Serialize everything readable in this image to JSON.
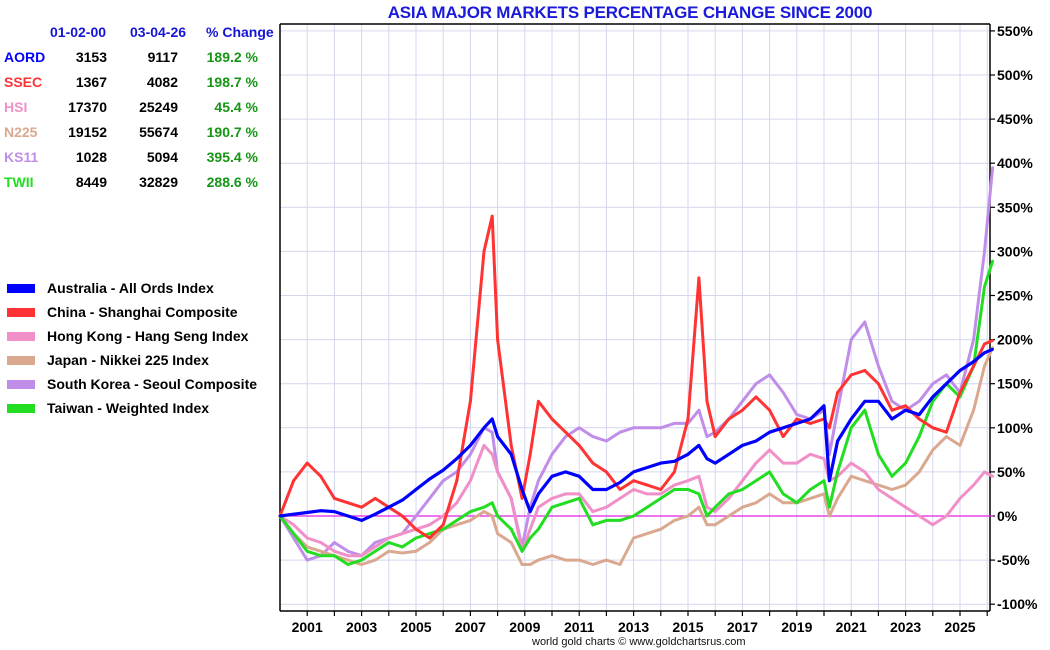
{
  "chart_data": {
    "type": "line",
    "title": "ASIA MAJOR MARKETS PERCENTAGE CHANGE SINCE 2000",
    "xlabel": "",
    "ylabel": "",
    "xlim": [
      2000.0,
      2026.2
    ],
    "ylim": [
      -100,
      550
    ],
    "grid": true,
    "legend": "left",
    "x_ticks": [
      "2001",
      "2003",
      "2005",
      "2007",
      "2009",
      "2011",
      "2013",
      "2015",
      "2017",
      "2019",
      "2021",
      "2023",
      "2025"
    ],
    "y_ticks": [
      "550%",
      "500%",
      "450%",
      "400%",
      "350%",
      "300%",
      "250%",
      "200%",
      "150%",
      "100%",
      "50%",
      "0%",
      "-50%",
      "-100%"
    ],
    "baseline": 0,
    "x": [
      2000.0,
      2000.5,
      2001.0,
      2001.5,
      2002.0,
      2002.5,
      2003.0,
      2003.5,
      2004.0,
      2004.5,
      2005.0,
      2005.5,
      2006.0,
      2006.5,
      2007.0,
      2007.5,
      2007.8,
      2008.0,
      2008.5,
      2008.9,
      2009.2,
      2009.5,
      2010.0,
      2010.5,
      2011.0,
      2011.5,
      2012.0,
      2012.5,
      2013.0,
      2013.5,
      2014.0,
      2014.5,
      2015.0,
      2015.4,
      2015.7,
      2016.0,
      2016.5,
      2017.0,
      2017.5,
      2018.0,
      2018.5,
      2019.0,
      2019.5,
      2020.0,
      2020.2,
      2020.5,
      2021.0,
      2021.5,
      2022.0,
      2022.5,
      2023.0,
      2023.5,
      2024.0,
      2024.5,
      2025.0,
      2025.5,
      2025.9,
      2026.2
    ],
    "series": [
      {
        "name": "Australia - All Ords Index",
        "code": "AORD",
        "color": "#0000ff",
        "values": [
          0,
          2,
          4,
          6,
          5,
          0,
          -5,
          2,
          10,
          18,
          30,
          42,
          52,
          65,
          80,
          100,
          110,
          90,
          70,
          30,
          5,
          25,
          45,
          50,
          45,
          30,
          30,
          38,
          50,
          55,
          60,
          62,
          70,
          80,
          65,
          60,
          70,
          80,
          85,
          95,
          100,
          105,
          110,
          125,
          40,
          85,
          110,
          130,
          130,
          110,
          120,
          115,
          135,
          150,
          165,
          175,
          185,
          189
        ]
      },
      {
        "name": "China - Shanghai Composite",
        "code": "SSEC",
        "color": "#ff3333",
        "values": [
          0,
          40,
          60,
          45,
          20,
          15,
          10,
          20,
          10,
          0,
          -15,
          -25,
          -10,
          40,
          130,
          300,
          340,
          200,
          80,
          20,
          70,
          130,
          110,
          95,
          80,
          60,
          50,
          30,
          40,
          35,
          30,
          50,
          110,
          270,
          130,
          90,
          110,
          120,
          135,
          120,
          90,
          110,
          105,
          110,
          100,
          140,
          160,
          165,
          150,
          120,
          125,
          110,
          100,
          95,
          140,
          170,
          195,
          199
        ]
      },
      {
        "name": "Hong Kong - Hang Seng Index",
        "code": "HSI",
        "color": "#f08fc8",
        "values": [
          0,
          -10,
          -25,
          -30,
          -40,
          -45,
          -45,
          -35,
          -25,
          -20,
          -15,
          -10,
          0,
          15,
          40,
          80,
          70,
          50,
          20,
          -40,
          -15,
          10,
          20,
          25,
          25,
          5,
          10,
          20,
          30,
          25,
          25,
          35,
          40,
          45,
          10,
          5,
          20,
          40,
          60,
          75,
          60,
          60,
          70,
          65,
          40,
          45,
          60,
          50,
          30,
          20,
          10,
          0,
          -10,
          0,
          20,
          35,
          50,
          45
        ]
      },
      {
        "name": "Japan - Nikkei 225 Index",
        "code": "N225",
        "color": "#d9a88f",
        "values": [
          0,
          -20,
          -35,
          -40,
          -45,
          -50,
          -55,
          -50,
          -40,
          -42,
          -40,
          -30,
          -15,
          -10,
          -5,
          5,
          0,
          -20,
          -30,
          -55,
          -55,
          -50,
          -45,
          -50,
          -50,
          -55,
          -50,
          -55,
          -25,
          -20,
          -15,
          -5,
          0,
          10,
          -10,
          -10,
          0,
          10,
          15,
          25,
          15,
          15,
          20,
          25,
          0,
          20,
          45,
          40,
          35,
          30,
          35,
          50,
          75,
          90,
          80,
          120,
          170,
          191
        ]
      },
      {
        "name": "South Korea - Seoul Composite",
        "code": "KS11",
        "color": "#c08ee8",
        "values": [
          0,
          -25,
          -50,
          -45,
          -30,
          -40,
          -45,
          -30,
          -25,
          -20,
          0,
          20,
          40,
          50,
          70,
          100,
          95,
          50,
          20,
          -35,
          10,
          40,
          70,
          90,
          100,
          90,
          85,
          95,
          100,
          100,
          100,
          105,
          105,
          120,
          90,
          95,
          110,
          130,
          150,
          160,
          140,
          115,
          110,
          120,
          70,
          120,
          200,
          220,
          170,
          130,
          120,
          130,
          150,
          160,
          140,
          200,
          300,
          395
        ]
      },
      {
        "name": "Taiwan - Weighted Index",
        "code": "TWII",
        "color": "#22dd22",
        "values": [
          0,
          -20,
          -40,
          -45,
          -45,
          -55,
          -50,
          -40,
          -30,
          -35,
          -25,
          -20,
          -15,
          -5,
          5,
          10,
          15,
          0,
          -15,
          -40,
          -25,
          -15,
          10,
          15,
          20,
          -10,
          -5,
          -5,
          0,
          10,
          20,
          30,
          30,
          25,
          0,
          10,
          25,
          30,
          40,
          50,
          25,
          15,
          30,
          40,
          10,
          50,
          100,
          120,
          70,
          45,
          60,
          90,
          130,
          150,
          135,
          170,
          260,
          289
        ]
      }
    ]
  },
  "table": {
    "headers": [
      "01-02-00",
      "03-04-26",
      "% Change"
    ],
    "rows": [
      {
        "code": "AORD",
        "start": "3153",
        "end": "9117",
        "change": "189.2 %",
        "color": "#0000ff"
      },
      {
        "code": "SSEC",
        "start": "1367",
        "end": "4082",
        "change": "198.7 %",
        "color": "#ff3333"
      },
      {
        "code": "HSI",
        "start": "17370",
        "end": "25249",
        "change": "45.4 %",
        "color": "#f08fc8"
      },
      {
        "code": "N225",
        "start": "19152",
        "end": "55674",
        "change": "190.7 %",
        "color": "#d9a88f"
      },
      {
        "code": "KS11",
        "start": "1028",
        "end": "5094",
        "change": "395.4 %",
        "color": "#c08ee8"
      },
      {
        "code": "TWII",
        "start": "8449",
        "end": "32829",
        "change": "288.6 %",
        "color": "#22dd22"
      }
    ]
  },
  "footer": "world gold charts © www.goldchartsrus.com",
  "colors": {
    "title": "#1a1adb",
    "grid": "#d4d6ee",
    "baseline": "#e020e0",
    "change": "#159615"
  }
}
